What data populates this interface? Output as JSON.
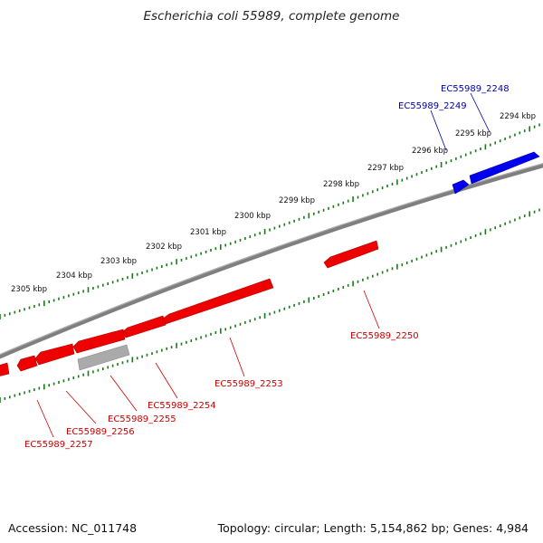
{
  "title": "Escherichia coli 55989, complete genome",
  "footer": {
    "accession": "Accession: NC_011748",
    "stats": "Topology: circular; Length: 5,154,862 bp; Genes: 4,984"
  },
  "colors": {
    "forward_gene": "#0000ee",
    "reverse_gene": "#ee0000",
    "pseudo_gene": "#aaaaaa",
    "backbone": "#808080",
    "ticks": "#1a7a1a"
  },
  "scale_labels": [
    "2294 kbp",
    "2295 kbp",
    "2296 kbp",
    "2297 kbp",
    "2298 kbp",
    "2299 kbp",
    "2300 kbp",
    "2301 kbp",
    "2302 kbp",
    "2303 kbp",
    "2304 kbp",
    "2305 kbp"
  ],
  "gene_labels": [
    {
      "name": "EC55989_2248",
      "strand": "forward"
    },
    {
      "name": "EC55989_2249",
      "strand": "forward"
    },
    {
      "name": "EC55989_2250",
      "strand": "reverse"
    },
    {
      "name": "EC55989_2253",
      "strand": "reverse"
    },
    {
      "name": "EC55989_2254",
      "strand": "reverse"
    },
    {
      "name": "EC55989_2255",
      "strand": "reverse"
    },
    {
      "name": "EC55989_2256",
      "strand": "reverse"
    },
    {
      "name": "EC55989_2257",
      "strand": "reverse"
    }
  ]
}
